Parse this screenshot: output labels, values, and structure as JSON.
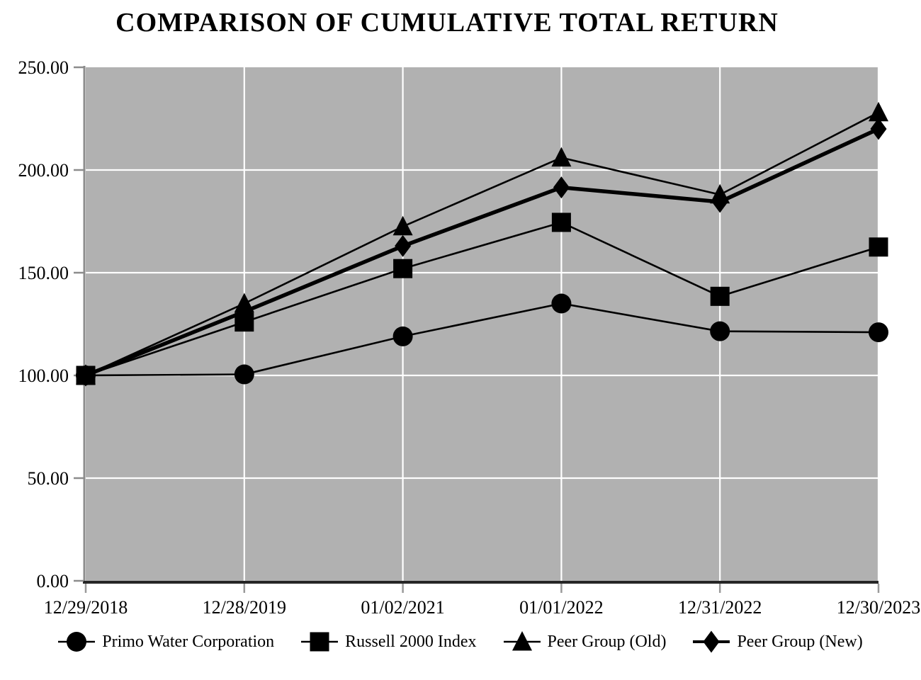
{
  "title": "COMPARISON OF CUMULATIVE TOTAL RETURN",
  "chart_data": {
    "type": "line",
    "title": "COMPARISON OF CUMULATIVE TOTAL RETURN",
    "x_labels": [
      "12/29/2018",
      "12/28/2019",
      "01/02/2021",
      "01/01/2022",
      "12/31/2022",
      "12/30/2023"
    ],
    "y_tick_labels": [
      "0.00",
      "50.00",
      "100.00",
      "150.00",
      "200.00",
      "250.00"
    ],
    "ylim": [
      0,
      250
    ],
    "y_tick_step": 50,
    "grid": true,
    "legend_position": "bottom",
    "plot_bg_color": "#b1b1b1",
    "gridline_color": "#ffffff",
    "axis_color": "#8c8c8c",
    "x_axis_line_color": "#262626",
    "series_color": "#000000",
    "series": [
      {
        "name": "Primo Water Corporation",
        "marker": "circle",
        "line_width": 2.6,
        "values": [
          100.0,
          100.5,
          119.0,
          135.0,
          121.5,
          121.0
        ]
      },
      {
        "name": "Russell 2000 Index",
        "marker": "square",
        "line_width": 2.6,
        "values": [
          100.0,
          126.0,
          152.0,
          174.5,
          138.5,
          162.5
        ]
      },
      {
        "name": "Peer Group (Old)",
        "marker": "triangle",
        "line_width": 2.6,
        "values": [
          100.0,
          135.0,
          172.5,
          206.0,
          188.0,
          228.0
        ]
      },
      {
        "name": "Peer Group (New)",
        "marker": "diamond",
        "line_width": 5.5,
        "values": [
          100.0,
          131.0,
          163.0,
          191.5,
          184.5,
          220.0
        ]
      }
    ]
  }
}
